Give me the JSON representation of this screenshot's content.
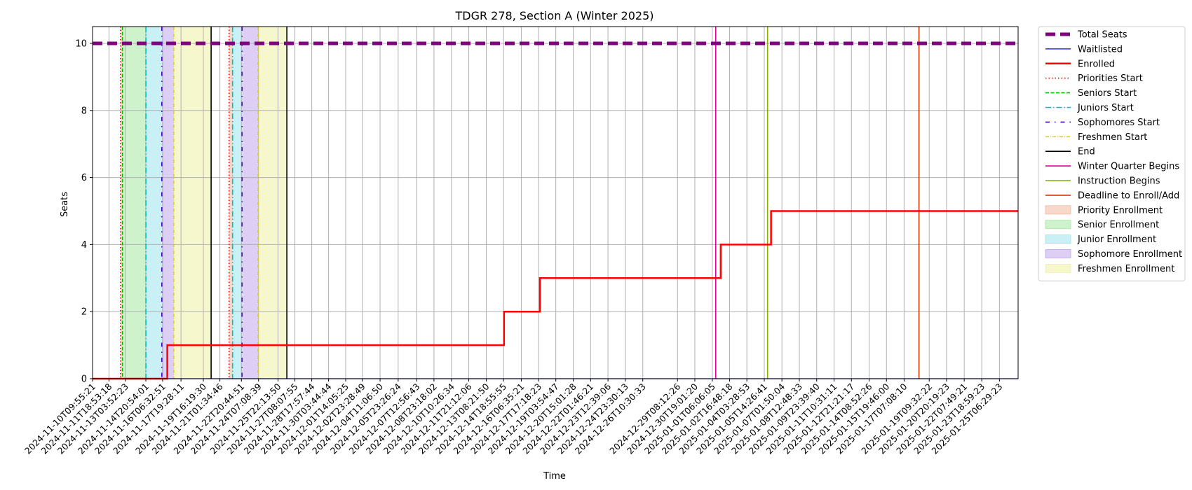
{
  "chart_data": {
    "type": "line",
    "title": "TDGR 278, Section A (Winter 2025)",
    "xlabel": "Time",
    "ylabel": "Seats",
    "ylim": [
      0,
      10.5
    ],
    "yticks": [
      0,
      2,
      4,
      6,
      8,
      10
    ],
    "xlim": [
      "2024-11-10T09:55:21",
      "2025-01-26T20:00:00"
    ],
    "xticks": [
      "2024-11-10T09:55:21",
      "2024-11-11T18:53:18",
      "2024-11-13T03:52:23",
      "2024-11-14T20:54:01",
      "2024-11-16T06:32:51",
      "2024-11-17T19:28:11",
      "2024-11-19T16:19:30",
      "2024-11-21T01:34:46",
      "2024-11-22T20:44:51",
      "2024-11-24T07:08:39",
      "2024-11-25T22:13:50",
      "2024-11-27T08:07:55",
      "2024-11-28T17:57:44",
      "2024-11-30T03:44:44",
      "2024-12-01T14:05:25",
      "2024-12-02T23:28:49",
      "2024-12-04T11:06:50",
      "2024-12-05T23:26:24",
      "2024-12-07T12:56:43",
      "2024-12-08T23:18:02",
      "2024-12-10T10:26:34",
      "2024-12-11T21:12:06",
      "2024-12-13T08:21:50",
      "2024-12-14T18:55:55",
      "2024-12-16T06:35:21",
      "2024-12-17T17:18:23",
      "2024-12-19T03:54:47",
      "2024-12-20T15:01:28",
      "2024-12-22T01:46:21",
      "2024-12-23T12:39:06",
      "2024-12-24T23:30:13",
      "2024-12-26T10:30:33",
      "2024-12-29T08:12:26",
      "2024-12-30T19:01:20",
      "2025-01-01T06:06:05",
      "2025-01-02T16:48:18",
      "2025-01-04T03:28:53",
      "2025-01-05T14:26:41",
      "2025-01-07T01:50:04",
      "2025-01-08T12:48:33",
      "2025-01-09T23:39:40",
      "2025-01-11T10:31:11",
      "2025-01-12T21:21:17",
      "2025-01-14T08:52:26",
      "2025-01-15T19:46:00",
      "2025-01-17T07:08:10",
      "2025-01-19T09:32:22",
      "2025-01-20T20:19:23",
      "2025-01-22T07:49:21",
      "2025-01-23T18:59:23",
      "2025-01-25T06:29:23"
    ],
    "grid": true,
    "legend_position": "outside-right",
    "series": [
      {
        "name": "Total Seats",
        "color": "#800080",
        "style": "dashed-thick",
        "points": [
          [
            "2024-11-10T09:55:21",
            10
          ],
          [
            "2025-01-26T20:00:00",
            10
          ]
        ]
      },
      {
        "name": "Waitlisted",
        "color": "#0000ff",
        "style": "solid-thin",
        "points": [
          [
            "2024-11-10T09:55:21",
            0
          ],
          [
            "2025-01-26T20:00:00",
            0
          ]
        ]
      },
      {
        "name": "Enrolled",
        "color": "#ff0000",
        "style": "step-thick",
        "points": [
          [
            "2024-11-10T09:55:21",
            0
          ],
          [
            "2024-11-16T16:00:00",
            1
          ],
          [
            "2024-12-14T20:00:00",
            2
          ],
          [
            "2024-12-17T20:00:00",
            3
          ],
          [
            "2025-01-01T23:00:00",
            4
          ],
          [
            "2025-01-06T04:00:00",
            5
          ],
          [
            "2025-01-26T20:00:00",
            5
          ]
        ]
      }
    ],
    "vertical_lines": [
      {
        "name": "Priorities Start",
        "color": "#ff0000",
        "style": "dotted",
        "x": [
          "2024-11-12T18:00:00",
          "2024-11-21T20:00:00"
        ]
      },
      {
        "name": "Seniors Start",
        "color": "#00c000",
        "style": "dashed",
        "x": [
          "2024-11-12T22:00:00"
        ]
      },
      {
        "name": "Juniors Start",
        "color": "#00bfbf",
        "style": "dashdot",
        "x": [
          "2024-11-14T21:00:00",
          "2024-11-22T03:00:00"
        ]
      },
      {
        "name": "Sophomores Start",
        "color": "#4b00c8",
        "style": "dashdot-sparse",
        "x": [
          "2024-11-16T05:00:00",
          "2024-11-22T22:00:00"
        ]
      },
      {
        "name": "Freshmen Start",
        "color": "#e6d200",
        "style": "dashdot-dense",
        "x": [
          "2024-11-17T05:00:00",
          "2024-11-24T06:00:00"
        ]
      },
      {
        "name": "End",
        "color": "#000000",
        "style": "solid",
        "x": [
          "2024-11-20T08:00:00",
          "2024-11-26T16:00:00"
        ]
      },
      {
        "name": "Winter Quarter Begins",
        "color": "#e600a0",
        "style": "solid",
        "x": [
          "2025-01-01T13:00:00"
        ]
      },
      {
        "name": "Instruction Begins",
        "color": "#7fb200",
        "style": "solid",
        "x": [
          "2025-01-05T21:00:00"
        ]
      },
      {
        "name": "Deadline to Enroll/Add",
        "color": "#cc3300",
        "style": "solid",
        "x": [
          "2025-01-18T13:00:00"
        ]
      }
    ],
    "shaded_regions": [
      {
        "name": "Priority Enrollment",
        "color": "#f4b8a2",
        "spans": [
          [
            "2024-11-12T18:00:00",
            "2024-11-12T22:00:00"
          ],
          [
            "2024-11-21T20:00:00",
            "2024-11-22T03:00:00"
          ]
        ]
      },
      {
        "name": "Senior Enrollment",
        "color": "#a6e8a0",
        "spans": [
          [
            "2024-11-12T22:00:00",
            "2024-11-14T21:00:00"
          ]
        ]
      },
      {
        "name": "Junior Enrollment",
        "color": "#9ce6ec",
        "spans": [
          [
            "2024-11-14T21:00:00",
            "2024-11-16T05:00:00"
          ],
          [
            "2024-11-22T03:00:00",
            "2024-11-22T22:00:00"
          ]
        ]
      },
      {
        "name": "Sophomore Enrollment",
        "color": "#c0a6ec",
        "spans": [
          [
            "2024-11-16T05:00:00",
            "2024-11-17T05:00:00"
          ],
          [
            "2024-11-22T22:00:00",
            "2024-11-24T06:00:00"
          ]
        ]
      },
      {
        "name": "Freshmen Enrollment",
        "color": "#f0f0a6",
        "spans": [
          [
            "2024-11-17T05:00:00",
            "2024-11-20T08:00:00"
          ],
          [
            "2024-11-24T06:00:00",
            "2024-11-26T16:00:00"
          ]
        ]
      }
    ],
    "legend": [
      {
        "label": "Total Seats",
        "kind": "line",
        "ref": "Total Seats"
      },
      {
        "label": "Waitlisted",
        "kind": "line",
        "ref": "Waitlisted"
      },
      {
        "label": "Enrolled",
        "kind": "line",
        "ref": "Enrolled"
      },
      {
        "label": "Priorities Start",
        "kind": "vline",
        "ref": "Priorities Start"
      },
      {
        "label": "Seniors Start",
        "kind": "vline",
        "ref": "Seniors Start"
      },
      {
        "label": "Juniors Start",
        "kind": "vline",
        "ref": "Juniors Start"
      },
      {
        "label": "Sophomores Start",
        "kind": "vline",
        "ref": "Sophomores Start"
      },
      {
        "label": "Freshmen Start",
        "kind": "vline",
        "ref": "Freshmen Start"
      },
      {
        "label": "End",
        "kind": "vline",
        "ref": "End"
      },
      {
        "label": "Winter Quarter Begins",
        "kind": "vline",
        "ref": "Winter Quarter Begins"
      },
      {
        "label": "Instruction Begins",
        "kind": "vline",
        "ref": "Instruction Begins"
      },
      {
        "label": "Deadline to Enroll/Add",
        "kind": "vline",
        "ref": "Deadline to Enroll/Add"
      },
      {
        "label": "Priority Enrollment",
        "kind": "patch",
        "ref": "Priority Enrollment"
      },
      {
        "label": "Senior Enrollment",
        "kind": "patch",
        "ref": "Senior Enrollment"
      },
      {
        "label": "Junior Enrollment",
        "kind": "patch",
        "ref": "Junior Enrollment"
      },
      {
        "label": "Sophomore Enrollment",
        "kind": "patch",
        "ref": "Sophomore Enrollment"
      },
      {
        "label": "Freshmen Enrollment",
        "kind": "patch",
        "ref": "Freshmen Enrollment"
      }
    ]
  }
}
